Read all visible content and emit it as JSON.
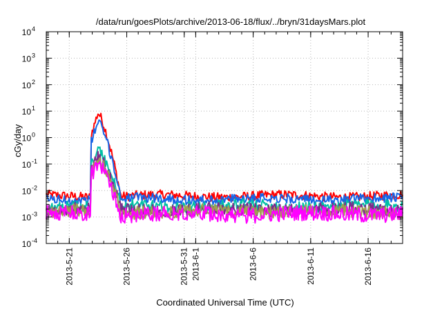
{
  "chart_data": {
    "type": "line",
    "title": "/data/run/goesPlots/archive/2013-06-18/flux/../bryn/31daysMars.plot",
    "xlabel": "Coordinated Universal Time (UTC)",
    "ylabel": "cGy/day",
    "yscale": "log",
    "ylim": [
      0.0001,
      10000
    ],
    "xlim": [
      "2013-05-19",
      "2013-06-19"
    ],
    "grid": true,
    "legend": "none",
    "x_tick_labels": [
      "2013-5-21",
      "2013-5-26",
      "2013-5-31",
      "2013-6-1",
      "2013-6-6",
      "2013-6-11",
      "2013-6-16"
    ],
    "y_tick_labels": [
      {
        "base": "10",
        "exp": "4"
      },
      {
        "base": "10",
        "exp": "3"
      },
      {
        "base": "10",
        "exp": "2"
      },
      {
        "base": "10",
        "exp": "1"
      },
      {
        "base": "10",
        "exp": "0"
      },
      {
        "base": "10",
        "exp": "-1"
      },
      {
        "base": "10",
        "exp": "-2"
      },
      {
        "base": "10",
        "exp": "-3"
      },
      {
        "base": "10",
        "exp": "-4"
      }
    ],
    "event": {
      "onset": "2013-05-22T22:00",
      "peak": "2013-05-23T12:00",
      "end": "2013-05-25T12:00"
    },
    "series": [
      {
        "color": "#ff0000",
        "baseline": 0.0062,
        "peak": 9.5,
        "noise": 0.18
      },
      {
        "color": "#1565e8",
        "baseline": 0.0048,
        "peak": 4.3,
        "noise": 0.18
      },
      {
        "color": "#00bfa5",
        "baseline": 0.0026,
        "peak": 0.32,
        "noise": 0.22
      },
      {
        "color": "#7e2a8a",
        "baseline": 0.0019,
        "peak": 0.17,
        "noise": 0.25
      },
      {
        "color": "#a0a050",
        "baseline": 0.0016,
        "peak": 0.14,
        "noise": 0.25
      },
      {
        "color": "#ff00ff",
        "baseline": 0.0013,
        "peak": 0.12,
        "noise": 0.3
      }
    ]
  }
}
